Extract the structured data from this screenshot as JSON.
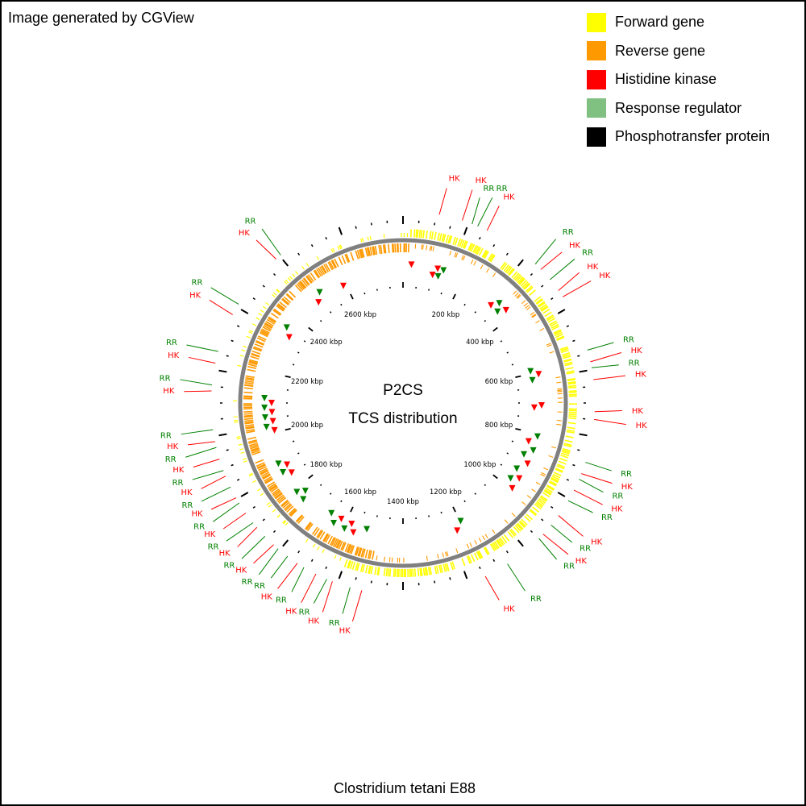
{
  "header": {
    "watermark": "Image generated by CGView"
  },
  "legend": [
    {
      "label": "Forward gene",
      "color": "#ffff00"
    },
    {
      "label": "Reverse gene",
      "color": "#ff9900"
    },
    {
      "label": "Histidine kinase",
      "color": "#ff0000"
    },
    {
      "label": "Response regulator",
      "color": "#80c080"
    },
    {
      "label": "Phosphotransfer protein",
      "color": "#000000"
    }
  ],
  "map": {
    "title_line1": "P2CS",
    "title_line2": "TCS distribution",
    "caption": "Clostridium tetani E88",
    "genome_length_kbp": 2800,
    "axis_labels": [
      "200 kbp",
      "400 kbp",
      "600 kbp",
      "800 kbp",
      "1000 kbp",
      "1200 kbp",
      "1400 kbp",
      "1600 kbp",
      "1800 kbp",
      "2000 kbp",
      "2200 kbp",
      "2400 kbp",
      "2600 kbp"
    ],
    "colors": {
      "forward": "#ffff00",
      "reverse": "#ff9900",
      "hk_label": "#ff0000",
      "rr_label": "#008000",
      "hk_marker": "#ff0000",
      "rr_marker": "#008000",
      "backbone": "#808080",
      "ticks": "#000000"
    },
    "callouts": [
      {
        "label": "HK",
        "angle": 11.5,
        "type": "hk"
      },
      {
        "label": "HK",
        "angle": 18,
        "type": "hk"
      },
      {
        "label": "RR",
        "angle": 20.5,
        "type": "rr"
      },
      {
        "label": "RR",
        "angle": 23.5,
        "type": "rr"
      },
      {
        "label": "HK",
        "angle": 26,
        "type": "hk"
      },
      {
        "label": "RR",
        "angle": 43,
        "type": "rr"
      },
      {
        "label": "HK",
        "angle": 46.5,
        "type": "hk"
      },
      {
        "label": "RR",
        "angle": 50,
        "type": "rr"
      },
      {
        "label": "HK",
        "angle": 53.5,
        "type": "hk"
      },
      {
        "label": "HK",
        "angle": 57,
        "type": "hk"
      },
      {
        "label": "RR",
        "angle": 74,
        "type": "rr"
      },
      {
        "label": "HK",
        "angle": 77,
        "type": "hk"
      },
      {
        "label": "RR",
        "angle": 80,
        "type": "rr"
      },
      {
        "label": "HK",
        "angle": 83,
        "type": "hk"
      },
      {
        "label": "HK",
        "angle": 92,
        "type": "hk"
      },
      {
        "label": "HK",
        "angle": 95.5,
        "type": "hk"
      },
      {
        "label": "RR",
        "angle": 108,
        "type": "rr"
      },
      {
        "label": "HK",
        "angle": 111,
        "type": "hk"
      },
      {
        "label": "RR",
        "angle": 114,
        "type": "rr"
      },
      {
        "label": "HK",
        "angle": 117,
        "type": "hk"
      },
      {
        "label": "RR",
        "angle": 120,
        "type": "rr"
      },
      {
        "label": "HK",
        "angle": 126.5,
        "type": "hk"
      },
      {
        "label": "RR",
        "angle": 129.5,
        "type": "rr"
      },
      {
        "label": "HK",
        "angle": 132.5,
        "type": "hk"
      },
      {
        "label": "RR",
        "angle": 135.5,
        "type": "rr"
      },
      {
        "label": "RR",
        "angle": 147,
        "type": "rr"
      },
      {
        "label": "HK",
        "angle": 154,
        "type": "hk"
      },
      {
        "label": "HK",
        "angle": 193,
        "type": "hk"
      },
      {
        "label": "RR",
        "angle": 196,
        "type": "rr"
      },
      {
        "label": "HK",
        "angle": 201,
        "type": "hk"
      },
      {
        "label": "RR",
        "angle": 204,
        "type": "rr"
      },
      {
        "label": "HK",
        "angle": 207,
        "type": "hk"
      },
      {
        "label": "RR",
        "angle": 210.5,
        "type": "rr"
      },
      {
        "label": "HK",
        "angle": 214,
        "type": "hk"
      },
      {
        "label": "RR",
        "angle": 217,
        "type": "rr"
      },
      {
        "label": "RR",
        "angle": 220,
        "type": "rr"
      },
      {
        "label": "HK",
        "angle": 223,
        "type": "hk"
      },
      {
        "label": "RR",
        "angle": 226,
        "type": "rr"
      },
      {
        "label": "HK",
        "angle": 229,
        "type": "hk"
      },
      {
        "label": "RR",
        "angle": 232,
        "type": "rr"
      },
      {
        "label": "HK",
        "angle": 235,
        "type": "hk"
      },
      {
        "label": "RR",
        "angle": 238,
        "type": "rr"
      },
      {
        "label": "HK",
        "angle": 241,
        "type": "hk"
      },
      {
        "label": "RR",
        "angle": 244,
        "type": "rr"
      },
      {
        "label": "HK",
        "angle": 247,
        "type": "hk"
      },
      {
        "label": "RR",
        "angle": 250,
        "type": "rr"
      },
      {
        "label": "HK",
        "angle": 253,
        "type": "hk"
      },
      {
        "label": "RR",
        "angle": 256,
        "type": "rr"
      },
      {
        "label": "HK",
        "angle": 259,
        "type": "hk"
      },
      {
        "label": "RR",
        "angle": 262,
        "type": "rr"
      },
      {
        "label": "HK",
        "angle": 273,
        "type": "hk"
      },
      {
        "label": "RR",
        "angle": 276,
        "type": "rr"
      },
      {
        "label": "HK",
        "angle": 282,
        "type": "hk"
      },
      {
        "label": "RR",
        "angle": 285,
        "type": "rr"
      },
      {
        "label": "HK",
        "angle": 298,
        "type": "hk"
      },
      {
        "label": "RR",
        "angle": 301,
        "type": "rr"
      },
      {
        "label": "HK",
        "angle": 318,
        "type": "hk"
      },
      {
        "label": "RR",
        "angle": 321,
        "type": "rr"
      }
    ],
    "markers": [
      {
        "angle": 3.5,
        "type": "hk"
      },
      {
        "angle": 13,
        "type": "hk"
      },
      {
        "angle": 14.5,
        "type": "hk"
      },
      {
        "angle": 15.5,
        "type": "rr"
      },
      {
        "angle": 17,
        "type": "rr"
      },
      {
        "angle": 42,
        "type": "hk"
      },
      {
        "angle": 44,
        "type": "rr"
      },
      {
        "angle": 46,
        "type": "rr"
      },
      {
        "angle": 48,
        "type": "hk"
      },
      {
        "angle": 76,
        "type": "rr"
      },
      {
        "angle": 78,
        "type": "hk"
      },
      {
        "angle": 80,
        "type": "rr"
      },
      {
        "angle": 91,
        "type": "hk"
      },
      {
        "angle": 92,
        "type": "hk"
      },
      {
        "angle": 104,
        "type": "rr"
      },
      {
        "angle": 107,
        "type": "hk"
      },
      {
        "angle": 110,
        "type": "rr"
      },
      {
        "angle": 113,
        "type": "rr"
      },
      {
        "angle": 116,
        "type": "hk"
      },
      {
        "angle": 120,
        "type": "rr"
      },
      {
        "angle": 123,
        "type": "hk"
      },
      {
        "angle": 125,
        "type": "rr"
      },
      {
        "angle": 128,
        "type": "hk"
      },
      {
        "angle": 154,
        "type": "rr"
      },
      {
        "angle": 157,
        "type": "hk"
      },
      {
        "angle": 196,
        "type": "rr"
      },
      {
        "angle": 201,
        "type": "hk"
      },
      {
        "angle": 203,
        "type": "hk"
      },
      {
        "angle": 205,
        "type": "rr"
      },
      {
        "angle": 208,
        "type": "hk"
      },
      {
        "angle": 210,
        "type": "rr"
      },
      {
        "angle": 213,
        "type": "rr"
      },
      {
        "angle": 226,
        "type": "rr"
      },
      {
        "angle": 228,
        "type": "rr"
      },
      {
        "angle": 230,
        "type": "rr"
      },
      {
        "angle": 238,
        "type": "hk"
      },
      {
        "angle": 240,
        "type": "rr"
      },
      {
        "angle": 242,
        "type": "hk"
      },
      {
        "angle": 244,
        "type": "rr"
      },
      {
        "angle": 258,
        "type": "hk"
      },
      {
        "angle": 260,
        "type": "rr"
      },
      {
        "angle": 262,
        "type": "hk"
      },
      {
        "angle": 264,
        "type": "rr"
      },
      {
        "angle": 266,
        "type": "hk"
      },
      {
        "angle": 268,
        "type": "rr"
      },
      {
        "angle": 270,
        "type": "hk"
      },
      {
        "angle": 272,
        "type": "rr"
      },
      {
        "angle": 300,
        "type": "hk"
      },
      {
        "angle": 303,
        "type": "rr"
      },
      {
        "angle": 320,
        "type": "hk"
      },
      {
        "angle": 323,
        "type": "rr"
      },
      {
        "angle": 333,
        "type": "hk"
      }
    ]
  }
}
